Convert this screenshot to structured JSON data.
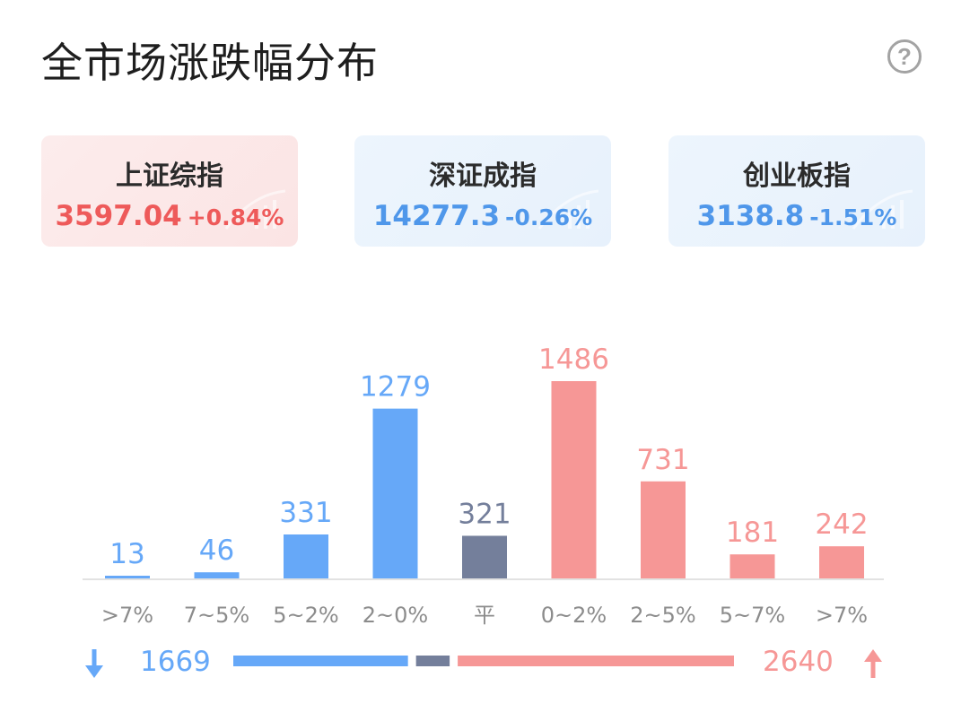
{
  "header": {
    "title": "全市场涨跌幅分布",
    "help_icon": "help-icon",
    "help_glyph": "?"
  },
  "indices": [
    {
      "name": "上证综指",
      "value": "3597.04",
      "change": "+0.84%",
      "trend": "up"
    },
    {
      "name": "深证成指",
      "value": "14277.3",
      "change": "-0.26%",
      "trend": "down"
    },
    {
      "name": "创业板指",
      "value": "3138.8",
      "change": "-1.51%",
      "trend": "down"
    }
  ],
  "colors": {
    "down": "#66a8f8",
    "flat": "#747f9b",
    "up": "#f69796",
    "axis": "#e2e2e2",
    "tick": "#8c8c8c"
  },
  "chart_data": {
    "type": "bar",
    "categories": [
      ">7%",
      "7~5%",
      "5~2%",
      "2~0%",
      "平",
      "0~2%",
      "2~5%",
      "5~7%",
      ">7%"
    ],
    "values": [
      13,
      46,
      331,
      1279,
      321,
      1486,
      731,
      181,
      242
    ],
    "groups": [
      "down",
      "down",
      "down",
      "down",
      "flat",
      "up",
      "up",
      "up",
      "up"
    ],
    "grid": false
  },
  "summary": {
    "down_total": "1669",
    "up_total": "2640",
    "flat_total": 321,
    "down_icon": "arrow-down-icon",
    "up_icon": "arrow-up-icon"
  }
}
